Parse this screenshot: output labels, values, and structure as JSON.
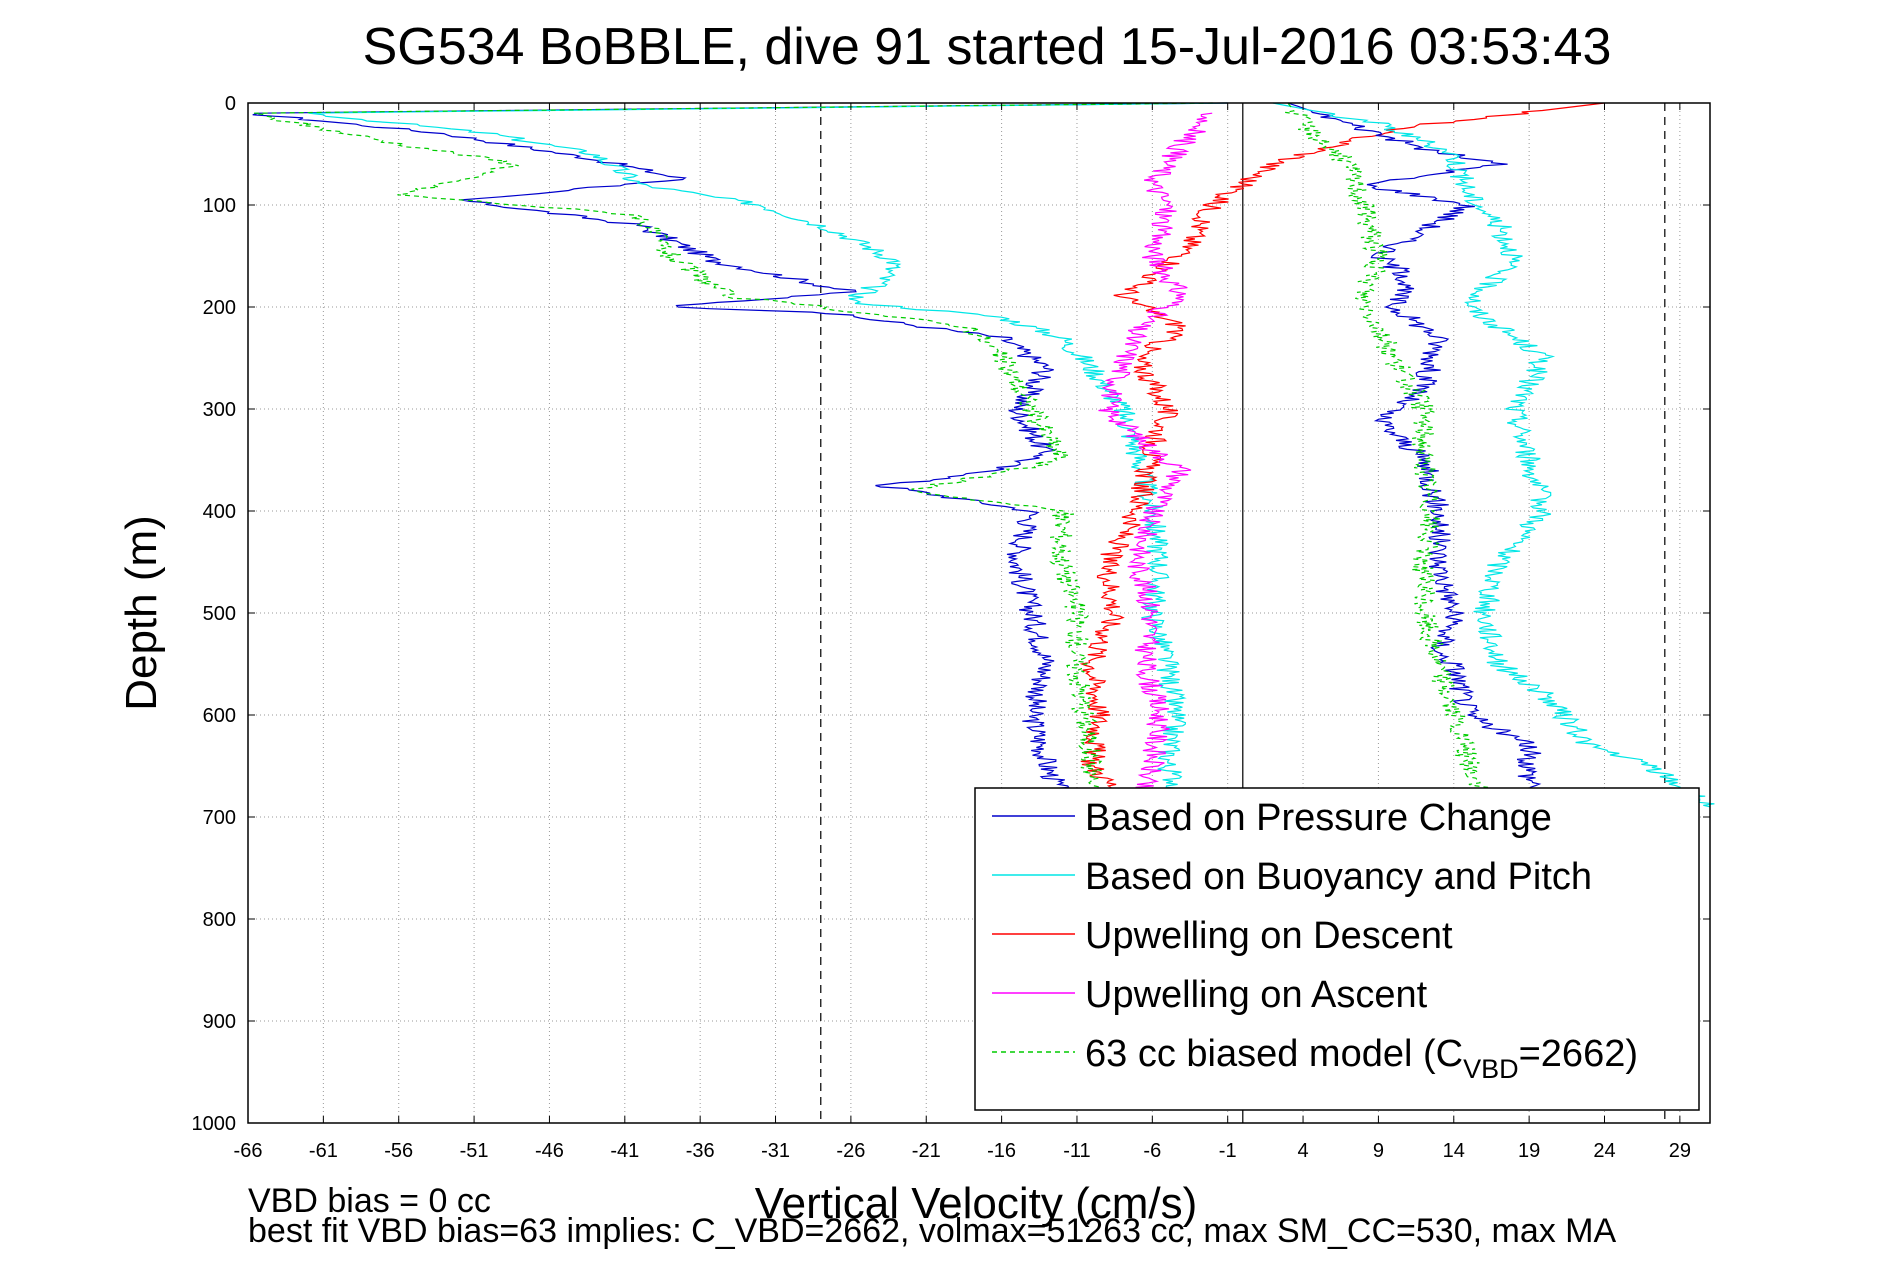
{
  "chart_data": {
    "type": "line",
    "title": "SG534 BoBBLE, dive 91 started 15-Jul-2016 03:53:43",
    "xlabel": "Vertical Velocity (cm/s)",
    "ylabel": "Depth (m)",
    "xlim": [
      -66,
      31
    ],
    "ylim": [
      0,
      1000
    ],
    "y_reversed": true,
    "grid": true,
    "xticks": [
      -66,
      -61,
      -56,
      -51,
      -46,
      -41,
      -36,
      -31,
      -26,
      -21,
      -16,
      -11,
      -6,
      -1,
      4,
      9,
      14,
      19,
      24,
      29
    ],
    "yticks": [
      0,
      100,
      200,
      300,
      400,
      500,
      600,
      700,
      800,
      900,
      1000
    ],
    "reference_lines": [
      {
        "style": "dashed",
        "x": -28
      },
      {
        "style": "solid",
        "x": 0
      },
      {
        "style": "dashed",
        "x": 28
      }
    ],
    "legend": {
      "placement": "bottom-right",
      "entries": [
        {
          "label": "Based on Pressure Change",
          "color": "#0000cc",
          "line": "solid"
        },
        {
          "label": "Based on Buoyancy and Pitch",
          "color": "#00e6e6",
          "line": "solid"
        },
        {
          "label": "Upwelling on Descent",
          "color": "#ff0000",
          "line": "solid"
        },
        {
          "label": "Upwelling on Ascent",
          "color": "#ff00ff",
          "line": "solid"
        },
        {
          "label_main": "63 cc biased model (C",
          "label_sub": "VBD",
          "label_end": "=2662)",
          "color": "#00cc00",
          "line": "dashed"
        }
      ]
    },
    "series": [
      {
        "color": "#0000cc",
        "width": 1.2,
        "dash": "",
        "depth": [
          0,
          10,
          30,
          55,
          75,
          95,
          120,
          155,
          185,
          200,
          205,
          230,
          260,
          300,
          345,
          365,
          375,
          400,
          450,
          500,
          550,
          600,
          650,
          680
        ],
        "values": [
          -1,
          -66,
          -53,
          -43,
          -37,
          -52,
          -40,
          -35,
          -26,
          -38,
          -28,
          -16,
          -13,
          -15,
          -13,
          -18,
          -24,
          -14,
          -15,
          -14,
          -13,
          -14,
          -13,
          -12
        ]
      },
      {
        "color": "#00e6e6",
        "width": 1.2,
        "dash": "",
        "depth": [
          0,
          10,
          30,
          50,
          80,
          100,
          125,
          155,
          175,
          195,
          210,
          230,
          260,
          300,
          345,
          400,
          450,
          500,
          550,
          600,
          650,
          680
        ],
        "values": [
          -1,
          -62,
          -50,
          -43,
          -40,
          -32,
          -27,
          -23,
          -24,
          -26,
          -16,
          -12,
          -10,
          -8,
          -7,
          -6,
          -5.5,
          -6,
          -5,
          -4.5,
          -5,
          -4
        ]
      },
      {
        "color": "#ff0000",
        "width": 1.2,
        "dash": "",
        "depth": [
          0,
          25,
          60,
          100,
          150,
          190,
          220,
          250,
          300,
          340,
          400,
          450,
          500,
          550,
          600,
          650,
          680
        ],
        "values": [
          24,
          10,
          2,
          -2,
          -4,
          -8,
          -4,
          -7,
          -5,
          -6,
          -7,
          -9,
          -8.5,
          -10,
          -9.5,
          -10,
          -8
        ]
      },
      {
        "color": "#ff00ff",
        "width": 1.2,
        "dash": "",
        "depth": [
          10,
          40,
          80,
          100,
          150,
          190,
          220,
          260,
          300,
          340,
          360,
          400,
          450,
          500,
          550,
          600,
          650,
          680
        ],
        "values": [
          -2,
          -4,
          -6,
          -5,
          -6,
          -4,
          -7,
          -8,
          -9,
          -6,
          -4,
          -6,
          -7,
          -6,
          -6.5,
          -5.5,
          -6,
          -7
        ]
      },
      {
        "color": "#00cc00",
        "width": 1.2,
        "dash": "5,4",
        "depth": [
          0,
          10,
          40,
          60,
          90,
          110,
          150,
          190,
          200,
          220,
          250,
          300,
          350,
          380,
          400,
          450,
          500,
          550,
          600,
          650,
          680
        ],
        "values": [
          -2,
          -66,
          -56,
          -48,
          -56,
          -40,
          -38,
          -34,
          -28,
          -18,
          -16,
          -14,
          -12,
          -22,
          -12,
          -12,
          -11,
          -11,
          -10.5,
          -10,
          -10
        ]
      },
      {
        "color": "#0000cc",
        "width": 1.2,
        "dash": "",
        "depth": [
          0,
          20,
          45,
          60,
          80,
          100,
          150,
          170,
          200,
          230,
          280,
          310,
          350,
          400,
          450,
          500,
          540,
          550,
          600,
          630,
          660,
          680
        ],
        "values": [
          3,
          7,
          12,
          17,
          8,
          15,
          9,
          11,
          10,
          13,
          12,
          9,
          12,
          13,
          13,
          14,
          13,
          14,
          15,
          19,
          19,
          20
        ]
      },
      {
        "color": "#00e6e6",
        "width": 1.2,
        "dash": "",
        "depth": [
          0,
          20,
          50,
          90,
          120,
          150,
          200,
          250,
          300,
          350,
          400,
          450,
          500,
          550,
          580,
          630,
          650,
          690
        ],
        "values": [
          2,
          9,
          14,
          15,
          17,
          18,
          15,
          20,
          18,
          19,
          20,
          17,
          16,
          17,
          20,
          23,
          27,
          31
        ]
      },
      {
        "color": "#00cc00",
        "width": 1.2,
        "dash": "5,4",
        "depth": [
          0,
          20,
          60,
          100,
          150,
          190,
          250,
          300,
          350,
          400,
          450,
          500,
          550,
          600,
          650,
          680
        ],
        "values": [
          3,
          4,
          7,
          8,
          9,
          8,
          10,
          12,
          12,
          12.5,
          12,
          12,
          13,
          14,
          15,
          16
        ]
      }
    ],
    "footnotes": [
      "VBD bias = 0 cc",
      "best fit VBD bias=63 implies: C_VBD=2662, volmax=51263 cc, max SM_CC=530, max MA"
    ]
  }
}
